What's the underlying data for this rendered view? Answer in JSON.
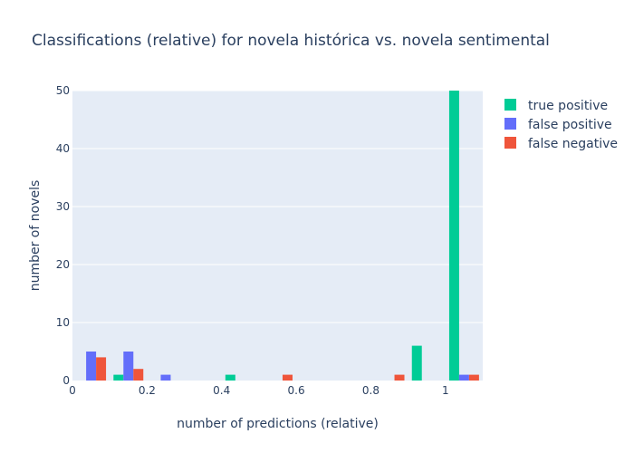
{
  "chart_data": {
    "type": "bar",
    "title": "Classifications (relative) for novela histórica vs. novela sentimental",
    "xlabel": "number of predictions (relative)",
    "ylabel": "number of novels",
    "xlim": [
      0,
      1.1
    ],
    "ylim": [
      0,
      50
    ],
    "bin_width": 0.1,
    "x_ticks": [
      0,
      0.2,
      0.4,
      0.6,
      0.8,
      1
    ],
    "x_tick_labels": [
      "0",
      "0.2",
      "0.4",
      "0.6",
      "0.8",
      "1"
    ],
    "y_ticks": [
      0,
      10,
      20,
      30,
      40,
      50
    ],
    "y_tick_labels": [
      "0",
      "10",
      "20",
      "30",
      "40",
      "50"
    ],
    "bin_starts": [
      0.0,
      0.1,
      0.2,
      0.3,
      0.4,
      0.5,
      0.6,
      0.7,
      0.8,
      0.9,
      1.0
    ],
    "series": [
      {
        "name": "true positive",
        "color": "#00cc96",
        "values": [
          0,
          1,
          0,
          0,
          1,
          0,
          0,
          0,
          0,
          6,
          50
        ]
      },
      {
        "name": "false positive",
        "color": "#636efa",
        "values": [
          5,
          5,
          1,
          0,
          0,
          0,
          0,
          0,
          0,
          0,
          1
        ]
      },
      {
        "name": "false negative",
        "color": "#ef553b",
        "values": [
          4,
          2,
          0,
          0,
          0,
          1,
          0,
          0,
          1,
          0,
          1
        ]
      }
    ],
    "grid": true,
    "legend_position": "top-right",
    "plot_background": "#e5ecf6"
  }
}
